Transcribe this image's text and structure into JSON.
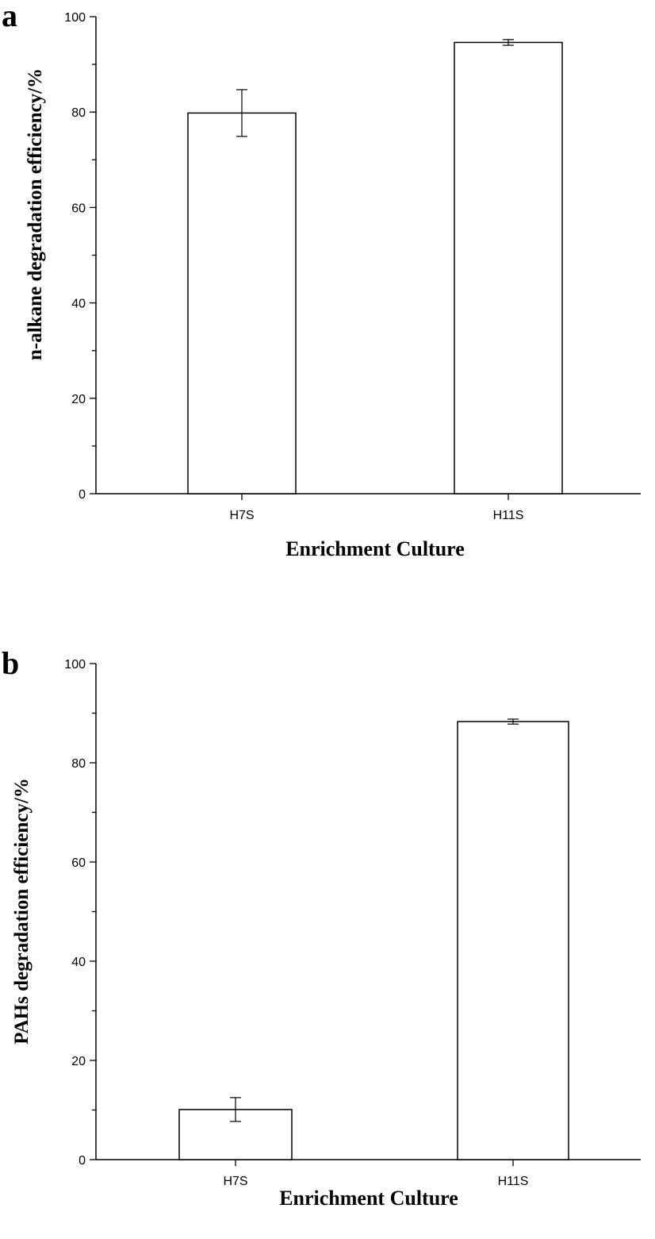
{
  "chart_data": [
    {
      "panel": "a",
      "type": "bar",
      "categories": [
        "H7S",
        "H11S"
      ],
      "values": [
        79.8,
        94.6
      ],
      "errors": [
        4.9,
        0.6
      ],
      "xlabel": "Enrichment Culture",
      "ylabel": "n-alkane degradation efficiency/%",
      "ylim": [
        0,
        100
      ],
      "yticks": [
        0,
        20,
        40,
        60,
        80,
        100
      ],
      "grid": false
    },
    {
      "panel": "b",
      "type": "bar",
      "categories": [
        "H7S",
        "H11S"
      ],
      "values": [
        10.1,
        88.3
      ],
      "errors": [
        2.4,
        0.5
      ],
      "xlabel": "Enrichment Culture",
      "ylabel": "PAHs degradation efficiency/%",
      "ylim": [
        0,
        100
      ],
      "yticks": [
        0,
        20,
        40,
        60,
        80,
        100
      ],
      "grid": false
    }
  ]
}
